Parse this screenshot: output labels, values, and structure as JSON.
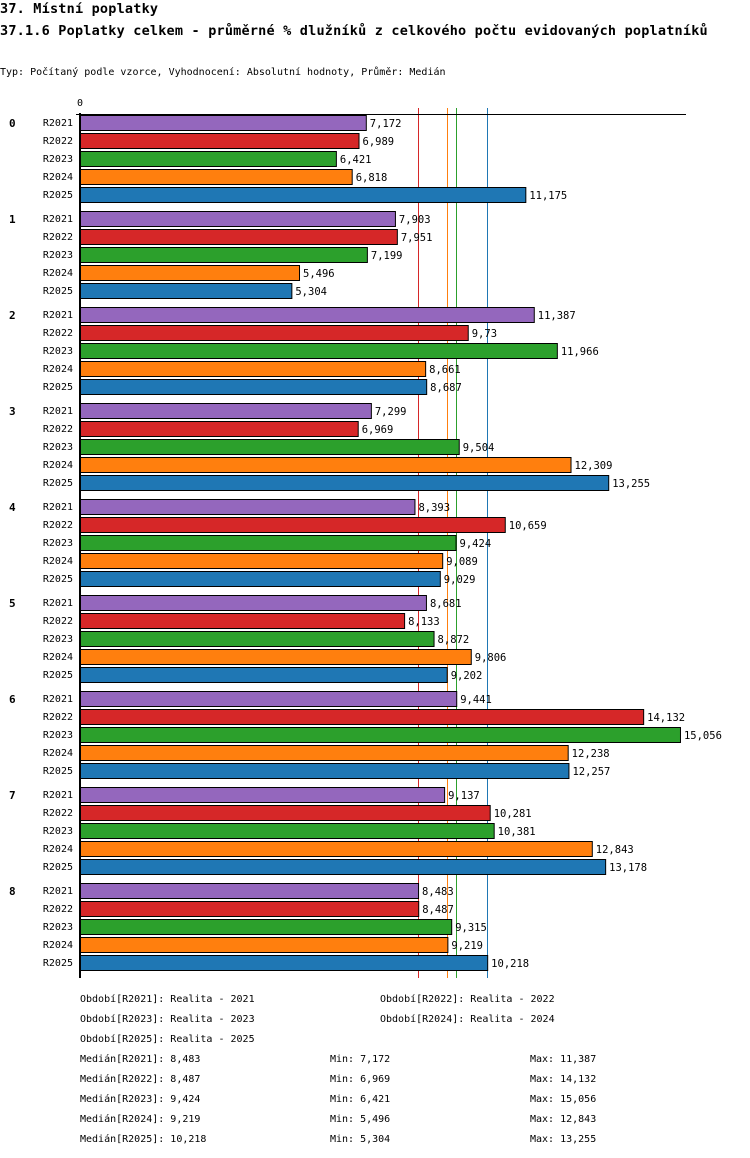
{
  "page": {
    "section_title": "37. Místní poplatky",
    "chart_title": "37.1.6 Poplatky celkem - průměrné % dlužníků z celkového počtu evidovaných poplatníků",
    "subtitle": "Typ: Počítaný podle vzorce, Vyhodnocení: Absolutní hodnoty, Průměr: Medián"
  },
  "chart_data": {
    "type": "bar",
    "orientation": "horizontal",
    "title": "37.1.6 Poplatky celkem - průměrné % dlužníků z celkového počtu evidovaných poplatníků",
    "xlabel": "",
    "ylabel": "",
    "x_tick_labels": [
      "0"
    ],
    "xlim": [
      0,
      15.2
    ],
    "grid": false,
    "legend": "bottom",
    "categories": [
      "0",
      "1",
      "2",
      "3",
      "4",
      "5",
      "6",
      "7",
      "8"
    ],
    "series": [
      {
        "name": "R2021",
        "color": "#9467bd",
        "values": [
          7.172,
          7.903,
          11.387,
          7.299,
          8.393,
          8.681,
          9.441,
          9.137,
          8.483
        ],
        "labels": [
          "7,172",
          "7,903",
          "11,387",
          "7,299",
          "8,393",
          "8,681",
          "9,441",
          "9,137",
          "8,483"
        ]
      },
      {
        "name": "R2022",
        "color": "#d62728",
        "values": [
          6.989,
          7.951,
          9.73,
          6.969,
          10.659,
          8.133,
          14.132,
          10.281,
          8.487
        ],
        "labels": [
          "6,989",
          "7,951",
          "9,73",
          "6,969",
          "10,659",
          "8,133",
          "14,132",
          "10,281",
          "8,487"
        ]
      },
      {
        "name": "R2023",
        "color": "#2ca02c",
        "values": [
          6.421,
          7.199,
          11.966,
          9.504,
          9.424,
          8.872,
          15.056,
          10.381,
          9.315
        ],
        "labels": [
          "6,421",
          "7,199",
          "11,966",
          "9,504",
          "9,424",
          "8,872",
          "15,056",
          "10,381",
          "9,315"
        ]
      },
      {
        "name": "R2024",
        "color": "#ff7f0e",
        "values": [
          6.818,
          5.496,
          8.661,
          12.309,
          9.089,
          9.806,
          12.238,
          12.843,
          9.219
        ],
        "labels": [
          "6,818",
          "5,496",
          "8,661",
          "12,309",
          "9,089",
          "9,806",
          "12,238",
          "12,843",
          "9,219"
        ]
      },
      {
        "name": "R2025",
        "color": "#1f77b4",
        "values": [
          11.175,
          5.304,
          8.687,
          13.255,
          9.029,
          9.202,
          12.257,
          13.178,
          10.218
        ],
        "labels": [
          "11,175",
          "5,304",
          "8,687",
          "13,255",
          "9,029",
          "9,202",
          "12,257",
          "13,178",
          "10,218"
        ]
      }
    ],
    "median_lines": [
      {
        "series": "R2021",
        "value": 8.483,
        "color": "#9467bd"
      },
      {
        "series": "R2022",
        "value": 8.487,
        "color": "#d62728"
      },
      {
        "series": "R2023",
        "value": 9.424,
        "color": "#2ca02c"
      },
      {
        "series": "R2024",
        "value": 9.219,
        "color": "#ff7f0e"
      },
      {
        "series": "R2025",
        "value": 10.218,
        "color": "#1f77b4"
      }
    ]
  },
  "legend": {
    "periods": [
      "Období[R2021]: Realita - 2021",
      "Období[R2022]: Realita - 2022",
      "Období[R2023]: Realita - 2023",
      "Období[R2024]: Realita - 2024",
      "Období[R2025]: Realita - 2025"
    ],
    "stats": [
      {
        "median": "Medián[R2021]: 8,483",
        "min": "Min: 7,172",
        "max": "Max: 11,387"
      },
      {
        "median": "Medián[R2022]: 8,487",
        "min": "Min: 6,969",
        "max": "Max: 14,132"
      },
      {
        "median": "Medián[R2023]: 9,424",
        "min": "Min: 6,421",
        "max": "Max: 15,056"
      },
      {
        "median": "Medián[R2024]: 9,219",
        "min": "Min: 5,496",
        "max": "Max: 12,843"
      },
      {
        "median": "Medián[R2025]: 10,218",
        "min": "Min: 5,304",
        "max": "Max: 13,255"
      }
    ]
  }
}
